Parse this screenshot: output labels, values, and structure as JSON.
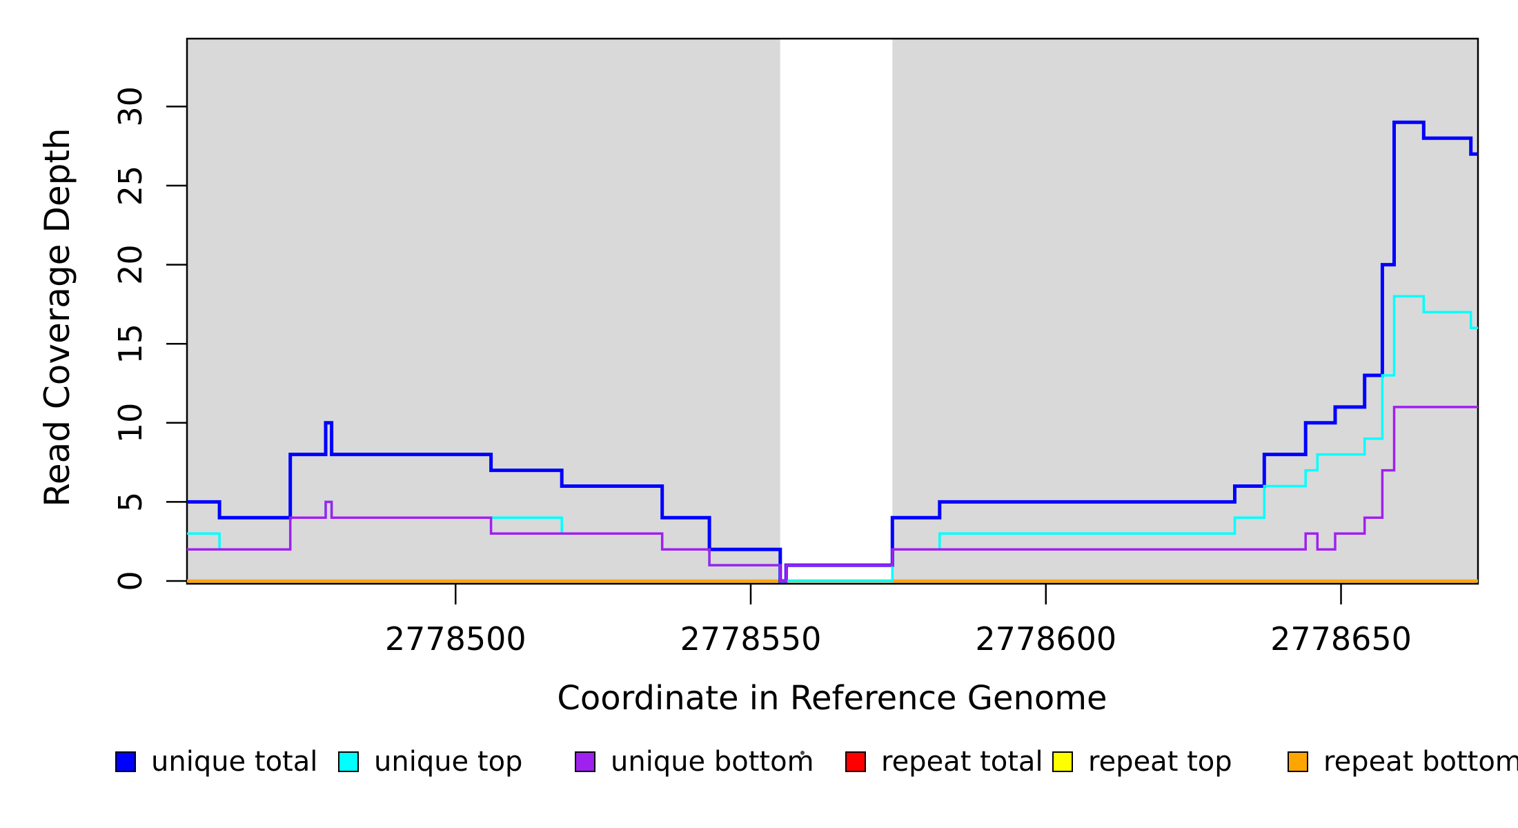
{
  "y_axis": {
    "label": "Read Coverage Depth",
    "ticks": [
      "0",
      "5",
      "10",
      "15",
      "20",
      "25",
      "30"
    ]
  },
  "x_axis": {
    "label": "Coordinate in Reference Genome",
    "ticks": [
      "2778500",
      "2778550",
      "2778600",
      "2778650"
    ]
  },
  "legend": {
    "items": [
      {
        "label": "unique total",
        "color": "#0000FF"
      },
      {
        "label": "unique top",
        "color": "#00FFFF"
      },
      {
        "label": "unique bottom",
        "color": "#A020F0"
      },
      {
        "label": "repeat total",
        "color": "#FF0000"
      },
      {
        "label": "repeat top",
        "color": "#FFFF00"
      },
      {
        "label": "repeat bottom",
        "color": "#FFA500"
      }
    ]
  },
  "colors": {
    "plot_background_gray": "#D9D9D9",
    "gap_band_white": "#FFFFFF",
    "axis_and_border": "#000000"
  },
  "chart_data": {
    "type": "line",
    "style": "step",
    "title": "",
    "xlabel": "Coordinate in Reference Genome",
    "ylabel": "Read Coverage Depth",
    "xlim": [
      2778454.5,
      2778673.2
    ],
    "x_end": 2778673.2,
    "ylim": [
      0,
      34.3
    ],
    "grid": false,
    "legend_position": "bottom",
    "x_ticks": [
      2778500,
      2778550,
      2778600,
      2778650
    ],
    "y_ticks": [
      0,
      5,
      10,
      15,
      20,
      25,
      30
    ],
    "background_bands": [
      {
        "name": "gray-band-left",
        "from": 2778454.5,
        "to": 2778555,
        "color": "#D9D9D9"
      },
      {
        "name": "white-gap-band",
        "from": 2778555,
        "to": 2778574,
        "color": "#FFFFFF"
      },
      {
        "name": "gray-band-right",
        "from": 2778574,
        "to": 2778673.2,
        "color": "#D9D9D9"
      }
    ],
    "series": [
      {
        "name": "repeat total",
        "color": "#FF0000",
        "width": 4,
        "steps": [
          [
            2778454.5,
            0
          ]
        ]
      },
      {
        "name": "repeat top",
        "color": "#FFFF00",
        "width": 4,
        "steps": [
          [
            2778454.5,
            0
          ]
        ]
      },
      {
        "name": "repeat bottom",
        "color": "#FFA500",
        "width": 4.5,
        "steps": [
          [
            2778454.5,
            0
          ]
        ]
      },
      {
        "name": "unique total",
        "color": "#0000FF",
        "width": 5,
        "steps": [
          [
            2778454.5,
            5
          ],
          [
            2778460,
            4
          ],
          [
            2778472,
            8
          ],
          [
            2778478,
            10
          ],
          [
            2778479,
            8
          ],
          [
            2778506,
            7
          ],
          [
            2778518,
            6
          ],
          [
            2778535,
            4
          ],
          [
            2778543,
            2
          ],
          [
            2778555,
            0
          ],
          [
            2778556,
            1
          ],
          [
            2778574,
            4
          ],
          [
            2778582,
            5
          ],
          [
            2778632,
            6
          ],
          [
            2778637,
            8
          ],
          [
            2778644,
            10
          ],
          [
            2778649,
            11
          ],
          [
            2778654,
            13
          ],
          [
            2778657,
            20
          ],
          [
            2778659,
            29
          ],
          [
            2778664,
            28
          ],
          [
            2778672,
            27
          ]
        ]
      },
      {
        "name": "unique top",
        "color": "#00FFFF",
        "width": 3.5,
        "steps": [
          [
            2778454.5,
            3
          ],
          [
            2778460,
            2
          ],
          [
            2778472,
            4
          ],
          [
            2778478,
            5
          ],
          [
            2778479,
            4
          ],
          [
            2778518,
            3
          ],
          [
            2778535,
            2
          ],
          [
            2778543,
            1
          ],
          [
            2778555,
            0
          ],
          [
            2778574,
            2
          ],
          [
            2778582,
            3
          ],
          [
            2778632,
            4
          ],
          [
            2778637,
            6
          ],
          [
            2778644,
            7
          ],
          [
            2778646,
            8
          ],
          [
            2778654,
            9
          ],
          [
            2778657,
            13
          ],
          [
            2778659,
            18
          ],
          [
            2778664,
            17
          ],
          [
            2778672,
            16
          ]
        ]
      },
      {
        "name": "unique bottom",
        "color": "#A020F0",
        "width": 3.5,
        "steps": [
          [
            2778454.5,
            2
          ],
          [
            2778472,
            4
          ],
          [
            2778478,
            5
          ],
          [
            2778479,
            4
          ],
          [
            2778506,
            3
          ],
          [
            2778535,
            2
          ],
          [
            2778543,
            1
          ],
          [
            2778555,
            0
          ],
          [
            2778556,
            1
          ],
          [
            2778574,
            2
          ],
          [
            2778644,
            3
          ],
          [
            2778646,
            2
          ],
          [
            2778649,
            3
          ],
          [
            2778654,
            4
          ],
          [
            2778657,
            7
          ],
          [
            2778659,
            11
          ]
        ]
      }
    ]
  }
}
